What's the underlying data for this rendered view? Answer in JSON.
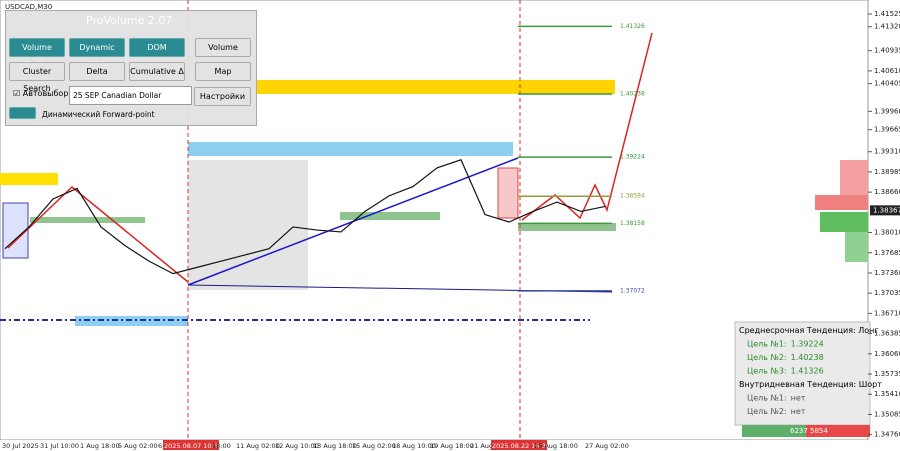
{
  "symbol": "USDCAD,M30",
  "panel": {
    "title": "ProVolume 2.07",
    "buttons": [
      "Volume Profile",
      "Dynamic POC",
      "DOM",
      "Volume",
      "Cluster Search",
      "Delta",
      "Cumulative Δ",
      "Map"
    ],
    "auto_select": "Автовыбор",
    "instrument": "25 SEP Canadian Dollar",
    "settings": "Настройки",
    "forward": "Динамический Forward-point"
  },
  "price_axis": {
    "ylim": [
      1.3469,
      1.4175
    ],
    "yticks": [
      {
        "value": 1.41525,
        "label": "1.41525"
      },
      {
        "value": 1.4132,
        "label": "1.41320"
      },
      {
        "value": 1.40935,
        "label": "1.40935"
      },
      {
        "value": 1.4061,
        "label": "1.40610"
      },
      {
        "value": 1.40405,
        "label": "1.40405"
      },
      {
        "value": 1.3996,
        "label": "1.39960"
      },
      {
        "value": 1.39665,
        "label": "1.39665"
      },
      {
        "value": 1.3931,
        "label": "1.39310"
      },
      {
        "value": 1.38985,
        "label": "1.38985"
      },
      {
        "value": 1.3866,
        "label": "1.38660"
      },
      {
        "value": 1.3801,
        "label": "1.38010"
      },
      {
        "value": 1.37685,
        "label": "1.37685"
      },
      {
        "value": 1.3736,
        "label": "1.37360"
      },
      {
        "value": 1.37035,
        "label": "1.37035"
      },
      {
        "value": 1.3671,
        "label": "1.36710"
      },
      {
        "value": 1.36385,
        "label": "1.36385"
      },
      {
        "value": 1.3606,
        "label": "1.36060"
      },
      {
        "value": 1.35735,
        "label": "1.35735"
      },
      {
        "value": 1.3541,
        "label": "1.35410"
      },
      {
        "value": 1.35085,
        "label": "1.35085"
      },
      {
        "value": 1.3476,
        "label": "1.34760"
      }
    ],
    "current_price": 1.38367
  },
  "time_axis": [
    "30 Jul 2025",
    "31 Jul 10:00",
    "1 Aug 18:00",
    "5 Aug 02:00",
    "6",
    "2025.08.07 10:30",
    "18:00",
    "11 Aug 02:00",
    "12 Aug 10:00",
    "13 Aug 18:00",
    "15 Aug 02:00",
    "18 Aug 10:00",
    "19 Aug 18:00",
    "21 Aug 02:00",
    "2025.08.22 16:30",
    "25 Aug 18:00",
    "27 Aug 02:00"
  ],
  "price": [
    1.3775,
    1.381,
    1.3855,
    1.3872,
    1.381,
    1.378,
    1.3755,
    1.3735,
    1.3745,
    1.3755,
    1.3765,
    1.3775,
    1.381,
    1.3805,
    1.3802,
    1.3835,
    1.386,
    1.3875,
    1.3905,
    1.3918,
    1.383,
    1.3818,
    1.3835,
    1.385,
    1.3835,
    1.3843
  ],
  "levels": [
    {
      "value": 1.41326,
      "color": "#3a9a3a"
    },
    {
      "value": 1.40238,
      "color": "#3a9a3a"
    },
    {
      "value": 1.39224,
      "color": "#3a9a3a"
    },
    {
      "value": 1.38594,
      "color": "#9a9a3a"
    },
    {
      "value": 1.38158,
      "color": "#3a9a3a"
    },
    {
      "value": 1.37072,
      "color": "#3a4aaa"
    }
  ],
  "trend_box": {
    "medium": "Среднесрочная Тенденция: Лонг",
    "targets_long": [
      {
        "label": "Цель №1:",
        "value": 1.39224
      },
      {
        "label": "Цель №2:",
        "value": 1.40238
      },
      {
        "label": "Цель №3:",
        "value": 1.41326
      }
    ],
    "intraday": "Внутридневная Тенденция: Шорт",
    "targets_short": [
      {
        "label": "Цель №1:",
        "value": "нет"
      },
      {
        "label": "Цель №2:",
        "value": "нет"
      }
    ]
  },
  "volume_bar": {
    "buy": 6237,
    "sell": 5854
  }
}
